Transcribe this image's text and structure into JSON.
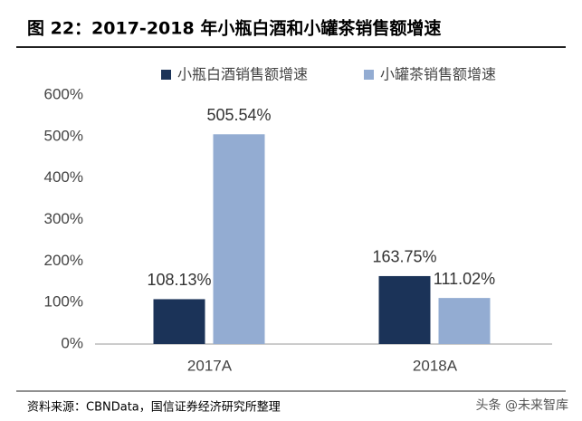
{
  "chart_data": {
    "type": "bar",
    "title": "图 22：2017-2018 年小瓶白酒和小罐茶销售额增速",
    "categories": [
      "2017A",
      "2018A"
    ],
    "series": [
      {
        "name": "小瓶白酒销售额增速",
        "color": "#1b3358",
        "values": [
          108.13,
          163.75
        ],
        "value_labels": [
          "108.13%",
          "163.75%"
        ]
      },
      {
        "name": "小罐茶销售额增速",
        "color": "#93acd2",
        "values": [
          505.54,
          111.02
        ],
        "value_labels": [
          "505.54%",
          "111.02%"
        ]
      }
    ],
    "ylim": [
      0,
      600
    ],
    "yticks": [
      {
        "value": 0,
        "label": "0%"
      },
      {
        "value": 100,
        "label": "100%"
      },
      {
        "value": 200,
        "label": "200%"
      },
      {
        "value": 300,
        "label": "300%"
      },
      {
        "value": 400,
        "label": "400%"
      },
      {
        "value": 500,
        "label": "500%"
      },
      {
        "value": 600,
        "label": "600%"
      }
    ],
    "source": "资料来源：CBNData，国信证券经济研究所整理",
    "watermark": "头条 @未来智库"
  }
}
